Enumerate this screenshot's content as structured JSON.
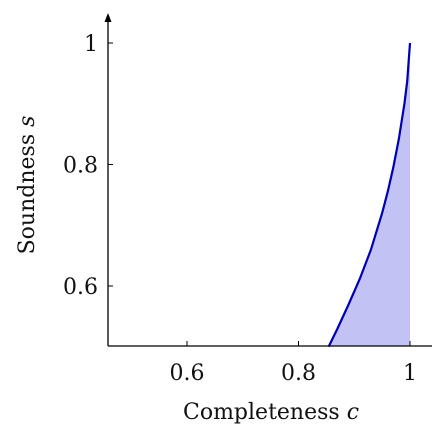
{
  "chart_data": {
    "type": "area",
    "title": "",
    "xlabel": {
      "text": "Completeness ",
      "var": "c"
    },
    "ylabel": {
      "text": "Soundness ",
      "var": "s"
    },
    "xlim": [
      0.5,
      1.02
    ],
    "ylim": [
      0.5,
      1.05
    ],
    "x_ticks": [
      0.6,
      0.8,
      1
    ],
    "x_tick_labels": [
      "0.6",
      "0.8",
      "1"
    ],
    "y_ticks": [
      0.6,
      0.8,
      1
    ],
    "y_tick_labels": [
      "0.6",
      "0.8",
      "1"
    ],
    "grid": false,
    "series": [
      {
        "x": [
          0.854,
          0.87,
          0.89,
          0.91,
          0.93,
          0.95,
          0.96,
          0.97,
          0.98,
          0.99,
          0.995,
          1.0
        ],
        "y": [
          0.5,
          0.53,
          0.57,
          0.612,
          0.66,
          0.72,
          0.755,
          0.795,
          0.842,
          0.9,
          0.937,
          1.0
        ],
        "fill_to": "x=1"
      }
    ],
    "colors": {
      "line": "#0000b3",
      "fill": "#c2c2f5"
    }
  }
}
